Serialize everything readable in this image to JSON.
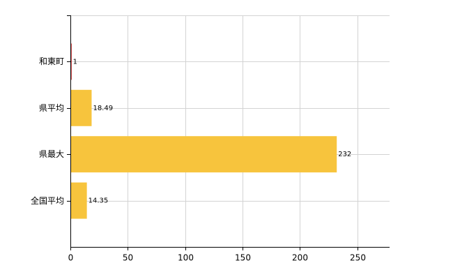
{
  "chart_data": {
    "type": "hbar",
    "categories": [
      "和東町",
      "県平均",
      "県最大",
      "全国平均"
    ],
    "values": [
      1,
      18.49,
      232,
      14.35
    ],
    "colors": [
      "#cc0000",
      "#f7c43d",
      "#f7c43d",
      "#f7c43d"
    ],
    "xlim": [
      0,
      278
    ],
    "xticks": [
      0,
      50,
      100,
      150,
      200,
      250
    ],
    "grid": true
  }
}
